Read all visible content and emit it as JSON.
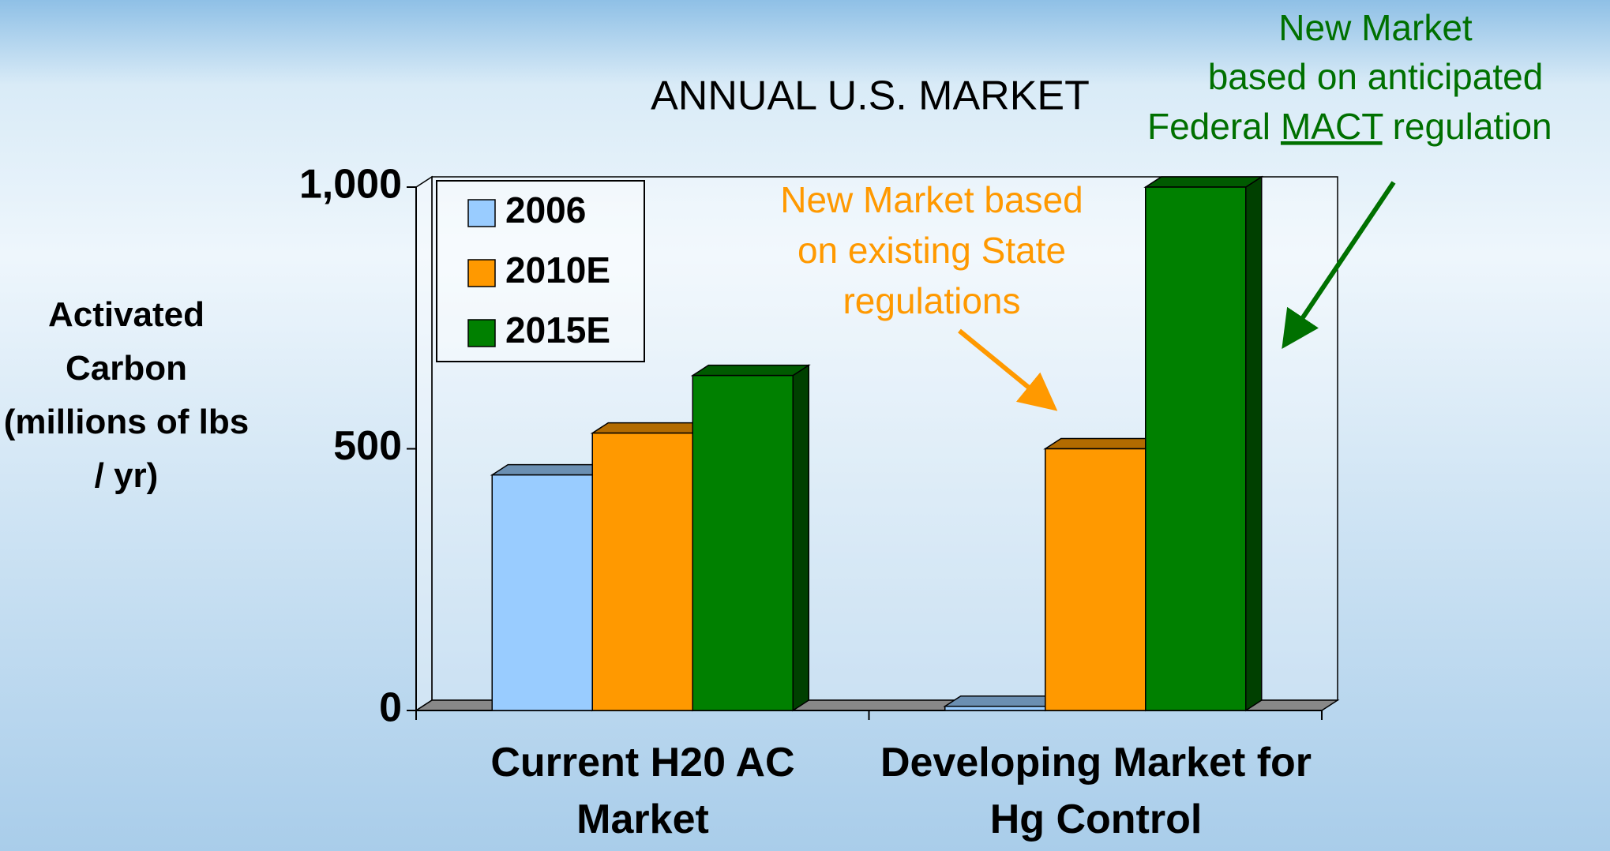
{
  "chart_data": {
    "type": "bar3d",
    "title": "ANNUAL U.S. MARKET",
    "y_label": "Activated Carbon (millions of lbs / yr)",
    "categories": [
      "Current H20 AC Market",
      "Developing Market for Hg Control"
    ],
    "series": [
      {
        "name": "2006",
        "color": "#99ccff",
        "values": [
          450,
          8
        ]
      },
      {
        "name": "2010E",
        "color": "#ff9900",
        "values": [
          530,
          500
        ]
      },
      {
        "name": "2015E",
        "color": "#008000",
        "values": [
          640,
          1000
        ]
      }
    ],
    "ylim": [
      0,
      1000
    ],
    "yticks": [
      0,
      500,
      {
        "value": 1000,
        "label": "1,000"
      }
    ],
    "legend": "upper-left",
    "annotations": [
      {
        "lines": [
          "New Market based",
          "on existing State",
          "regulations"
        ],
        "color": "#ff9900"
      },
      {
        "lines": [
          "New Market",
          "based on anticipated"
        ],
        "last_line": [
          "Federal",
          "MACT",
          "regulation"
        ],
        "color": "#007000"
      }
    ]
  }
}
